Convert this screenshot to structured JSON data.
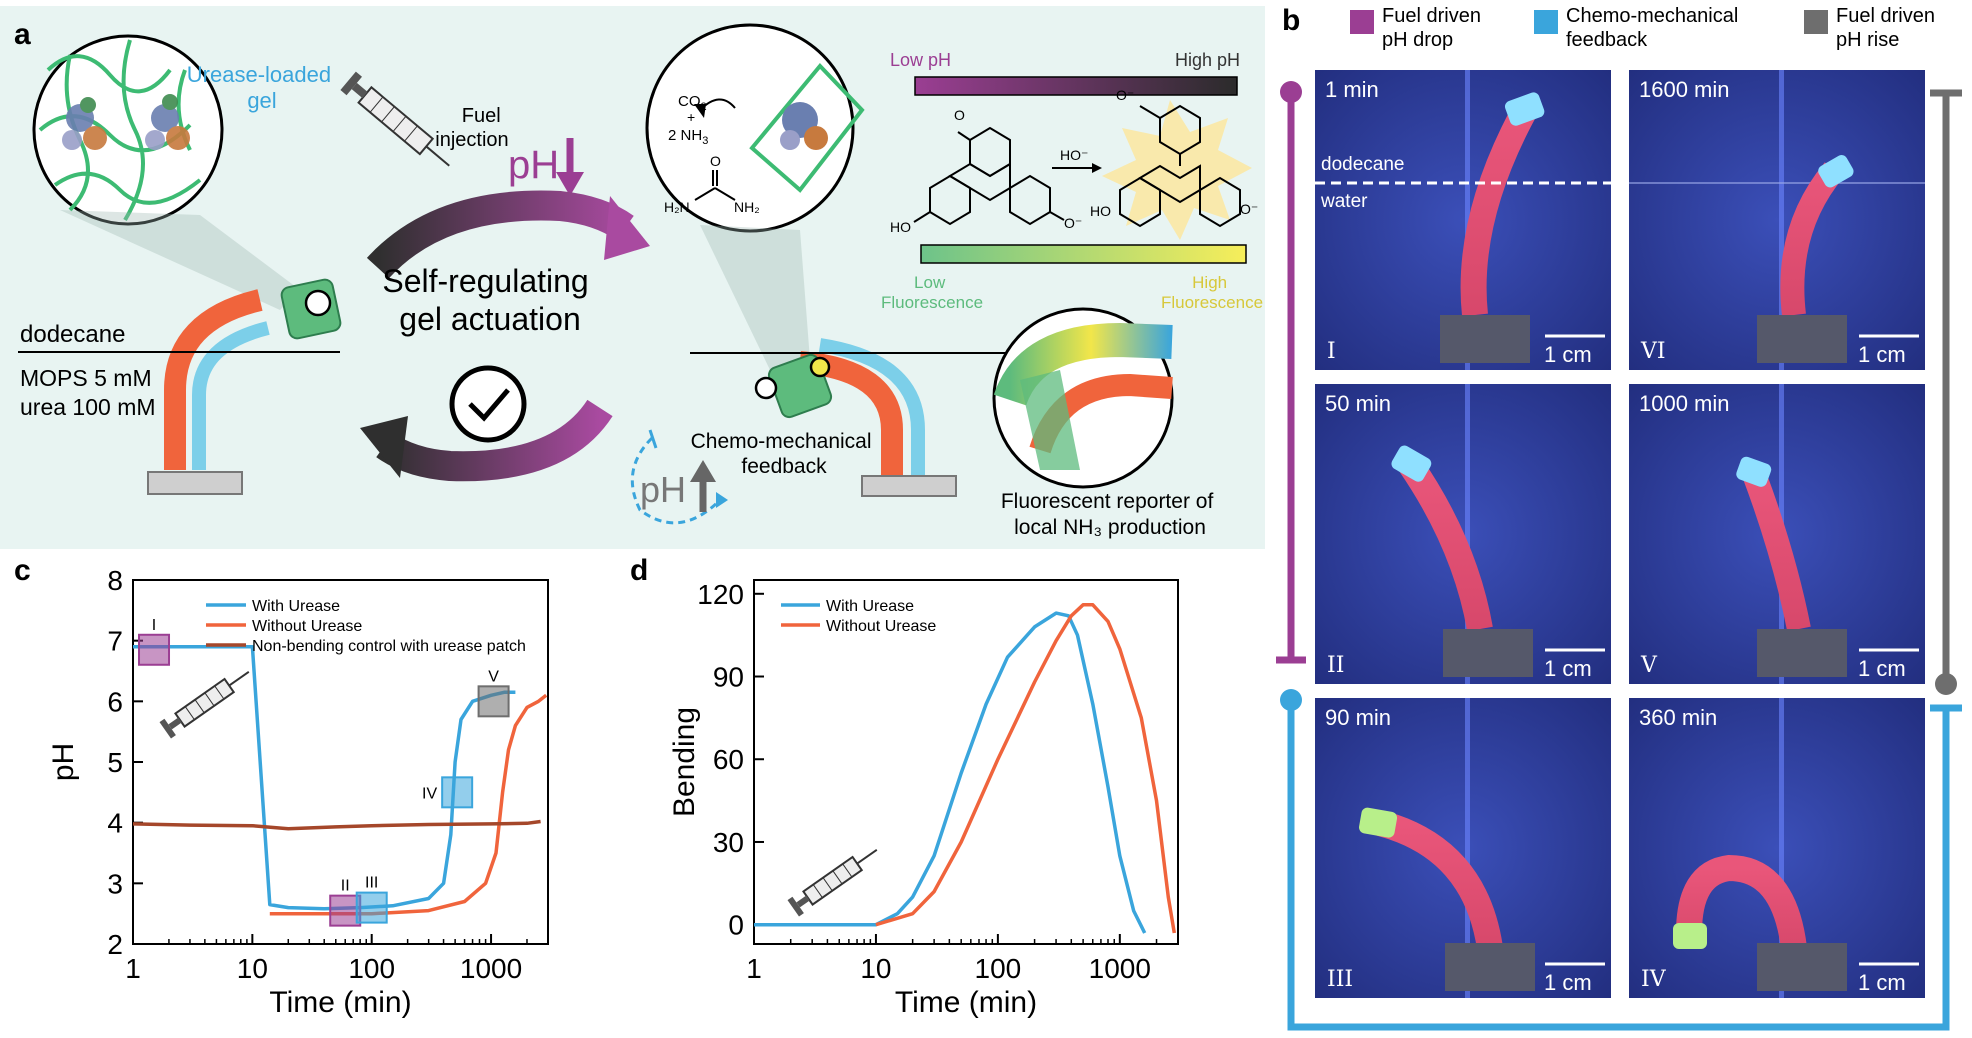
{
  "panel_labels": {
    "a": "a",
    "b": "b",
    "c": "c",
    "d": "d"
  },
  "panel_a": {
    "gel_label": "Urease-loaded gel",
    "gel_label_line1": "Urease-loaded",
    "gel_label_line2": "gel",
    "fuel_line1": "Fuel",
    "fuel_line2": "injection",
    "ph_symbol": "pH",
    "center_line1": "Self-regulating",
    "center_line2": "gel actuation",
    "dodecane": "dodecane",
    "mops": "MOPS 5 mM",
    "urea": "urea 100 mM",
    "co2": "CO",
    "co2_sub": "2",
    "plus": "+",
    "nh3": "2 NH",
    "nh3_sub": "3",
    "urea_h2n": "H₂N",
    "urea_nh2": "NH₂",
    "urea_o": "O",
    "ho_left": "HO",
    "o_minus_left": "O⁻",
    "ho_arrow": "HO⁻",
    "ho_right": "HO",
    "o_minus_right": "O⁻",
    "o_minus_carboxylate": "O⁻",
    "o_ring": "O",
    "low_ph": "Low pH",
    "high_ph": "High pH",
    "low_fl_line1": "Low",
    "low_fl_line2": "Fluorescence",
    "high_fl_line1": "High",
    "high_fl_line2": "Fluorescence",
    "feedback_line1": "Chemo-mechanical",
    "feedback_line2": "feedback",
    "reporter_line1": "Fluorescent reporter of",
    "reporter_line2": "local NH₃ production",
    "colors": {
      "purple": "#9b3e93",
      "blue": "#3aa5dc",
      "orange": "#f0643c",
      "green": "#5dbb7d",
      "yellow": "#f2e64a",
      "gray": "#666666",
      "bg": "#e8f4f2"
    }
  },
  "panel_b": {
    "legend": [
      {
        "line1": "Fuel driven",
        "line2": "pH drop",
        "color": "#9b3e93"
      },
      {
        "line1": "Chemo-mechanical",
        "line2": "feedback",
        "color": "#3aa5dc"
      },
      {
        "line1": "Fuel driven",
        "line2": "pH rise",
        "color": "#6e6e6e"
      }
    ],
    "photos": [
      {
        "time": "1 min",
        "numeral": "I",
        "scale": "1 cm"
      },
      {
        "time": "1600 min",
        "numeral": "VI",
        "scale": "1 cm"
      },
      {
        "time": "50 min",
        "numeral": "II",
        "scale": "1 cm"
      },
      {
        "time": "1000 min",
        "numeral": "V",
        "scale": "1 cm"
      },
      {
        "time": "90 min",
        "numeral": "III",
        "scale": "1 cm"
      },
      {
        "time": "360 min",
        "numeral": "IV",
        "scale": "1 cm"
      }
    ],
    "dodecane_label": "dodecane",
    "water_label": "water"
  },
  "chart_data": [
    {
      "type": "line",
      "panel": "c",
      "xlabel": "Time (min)",
      "ylabel": "pH",
      "xscale": "log",
      "xlim": [
        1,
        3000
      ],
      "ylim": [
        2,
        8
      ],
      "xticks": [
        1,
        10,
        100,
        1000
      ],
      "xtick_labels": [
        "1",
        "10",
        "100",
        "1000"
      ],
      "yticks": [
        2,
        3,
        4,
        5,
        6,
        7,
        8
      ],
      "ytick_labels": [
        "2",
        "3",
        "4",
        "5",
        "6",
        "7",
        "8"
      ],
      "legend_position": "top",
      "series": [
        {
          "name": "With Urease",
          "color": "#3aa5dc",
          "x": [
            1,
            3,
            6,
            10,
            14,
            20,
            40,
            80,
            150,
            300,
            400,
            460,
            500,
            560,
            700,
            1000,
            1300,
            1600
          ],
          "y": [
            6.9,
            6.9,
            6.9,
            6.9,
            2.65,
            2.6,
            2.58,
            2.6,
            2.63,
            2.75,
            3.0,
            3.8,
            5.0,
            5.7,
            6.0,
            6.1,
            6.15,
            6.15
          ]
        },
        {
          "name": "Without Urease",
          "color": "#f0643c",
          "x": [
            14,
            30,
            100,
            300,
            600,
            900,
            1100,
            1250,
            1400,
            1600,
            2000,
            2500,
            2900
          ],
          "y": [
            2.5,
            2.5,
            2.5,
            2.55,
            2.7,
            3.0,
            3.5,
            4.5,
            5.2,
            5.6,
            5.9,
            6.0,
            6.1
          ]
        },
        {
          "name": "Non-bending control with urease patch",
          "color": "#a5472a",
          "x": [
            1,
            3,
            10,
            20,
            50,
            100,
            300,
            1000,
            2000,
            2600
          ],
          "y": [
            3.98,
            3.96,
            3.95,
            3.9,
            3.93,
            3.95,
            3.97,
            3.98,
            3.99,
            4.02
          ]
        }
      ],
      "markers": [
        {
          "label": "I",
          "x": 1.5,
          "y": 6.85,
          "color": "#9b3e93"
        },
        {
          "label": "II",
          "x": 60,
          "y": 2.55,
          "color": "#9b3e93"
        },
        {
          "label": "III",
          "x": 100,
          "y": 2.6,
          "color": "#3aa5dc"
        },
        {
          "label": "IV",
          "x": 520,
          "y": 4.5,
          "color": "#3aa5dc"
        },
        {
          "label": "V",
          "x": 1050,
          "y": 6.0,
          "color": "#6e6e6e"
        }
      ]
    },
    {
      "type": "line",
      "panel": "d",
      "xlabel": "Time (min)",
      "ylabel": "Bending",
      "xscale": "log",
      "xlim": [
        1,
        3000
      ],
      "ylim": [
        -7,
        125
      ],
      "xticks": [
        1,
        10,
        100,
        1000
      ],
      "xtick_labels": [
        "1",
        "10",
        "100",
        "1000"
      ],
      "yticks": [
        0,
        30,
        60,
        90,
        120
      ],
      "ytick_labels": [
        "0",
        "30",
        "60",
        "90",
        "120"
      ],
      "legend_position": "top-left",
      "series": [
        {
          "name": "With Urease",
          "color": "#3aa5dc",
          "x": [
            1,
            5,
            10,
            15,
            20,
            30,
            50,
            80,
            120,
            200,
            300,
            380,
            450,
            600,
            800,
            1000,
            1300,
            1600
          ],
          "y": [
            0,
            0,
            0,
            4,
            10,
            25,
            55,
            80,
            97,
            108,
            113,
            112,
            105,
            80,
            50,
            25,
            5,
            -3
          ]
        },
        {
          "name": "Without Urease",
          "color": "#f0643c",
          "x": [
            10,
            20,
            30,
            50,
            100,
            200,
            300,
            400,
            500,
            600,
            800,
            1000,
            1500,
            2000,
            2500,
            2800
          ],
          "y": [
            0,
            4,
            12,
            30,
            60,
            88,
            103,
            112,
            116,
            116,
            110,
            100,
            75,
            45,
            10,
            -3
          ]
        }
      ]
    }
  ]
}
